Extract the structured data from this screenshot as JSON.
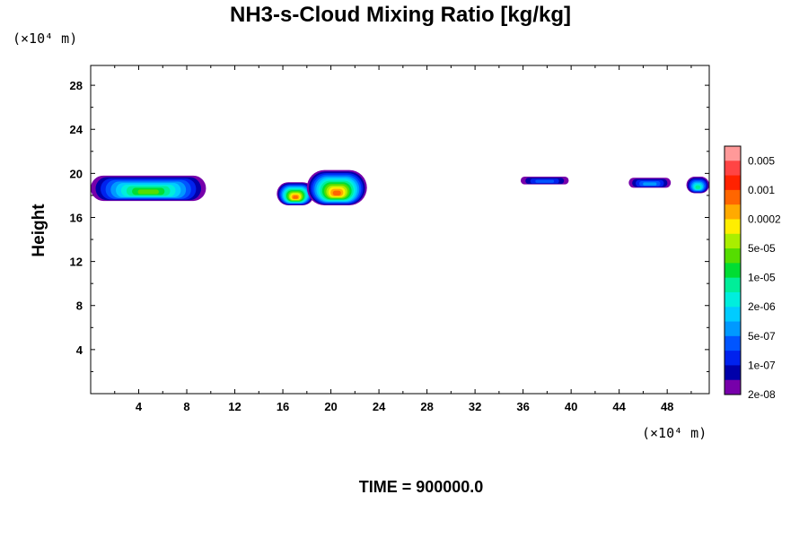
{
  "chart_data": {
    "type": "heatmap",
    "title": "NH3-s-Cloud Mixing Ratio [kg/kg]",
    "ylabel": "Height",
    "xlabel": "",
    "x_unit": "(×10⁴ m)",
    "y_unit": "(×10⁴ m)",
    "xlim": [
      0,
      51.5
    ],
    "ylim": [
      0,
      29.8
    ],
    "x_ticks": [
      4,
      8,
      12,
      16,
      20,
      24,
      28,
      32,
      36,
      40,
      44,
      48
    ],
    "y_ticks": [
      4,
      8,
      12,
      16,
      20,
      24,
      28
    ],
    "x_minor_step": 2,
    "y_minor_step": 2,
    "grid": false,
    "colorbar": {
      "labels": [
        "0.005",
        "0.001",
        "0.0002",
        "5e-05",
        "1e-05",
        "2e-06",
        "5e-07",
        "1e-07",
        "2e-08"
      ],
      "colors": [
        "#ff9999",
        "#ff4444",
        "#ff2200",
        "#ff6600",
        "#ffaa00",
        "#ffee00",
        "#aaee00",
        "#55dd00",
        "#00dd33",
        "#00ee99",
        "#00eedd",
        "#00ccff",
        "#0099ff",
        "#0055ff",
        "#0022ee",
        "#0000aa",
        "#7700aa"
      ]
    },
    "clouds": [
      {
        "x_min": 0.0,
        "x_max": 9.6,
        "y_min": 17.5,
        "y_max": 19.8,
        "peak_level": 9
      },
      {
        "x_min": 15.5,
        "x_max": 18.6,
        "y_min": 17.1,
        "y_max": 19.2,
        "peak_level": 13
      },
      {
        "x_min": 18.0,
        "x_max": 23.0,
        "y_min": 17.1,
        "y_max": 20.3,
        "peak_level": 13
      },
      {
        "x_min": 35.8,
        "x_max": 39.8,
        "y_min": 19.0,
        "y_max": 19.7,
        "peak_level": 3
      },
      {
        "x_min": 44.8,
        "x_max": 48.3,
        "y_min": 18.7,
        "y_max": 19.6,
        "peak_level": 4
      },
      {
        "x_min": 49.6,
        "x_max": 51.5,
        "y_min": 18.2,
        "y_max": 19.7,
        "peak_level": 7
      }
    ]
  },
  "footer": {
    "time_label": "TIME = 900000.0"
  }
}
